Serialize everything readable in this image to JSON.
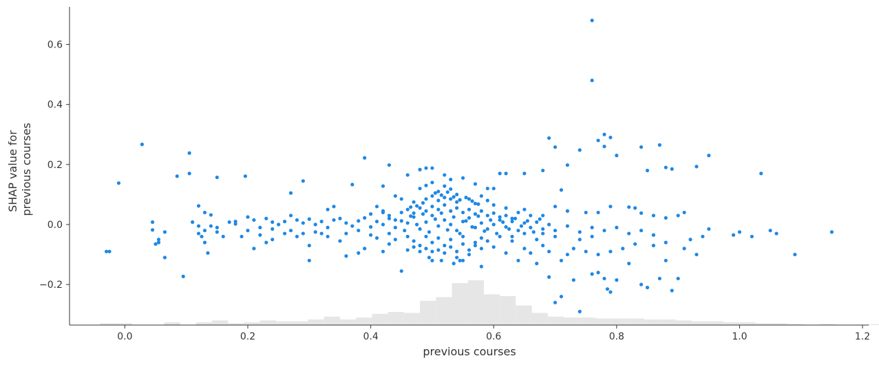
{
  "chart_data": {
    "type": "scatter",
    "title": "",
    "xlabel": "previous courses",
    "ylabel": [
      "SHAP value for",
      "previous courses"
    ],
    "xlim": [
      -0.09,
      1.21
    ],
    "ylim": [
      -0.335,
      0.725
    ],
    "x_ticks": [
      0.0,
      0.2,
      0.4,
      0.6,
      0.8,
      1.0,
      1.2
    ],
    "x_tick_labels": [
      "0.0",
      "0.2",
      "0.4",
      "0.6",
      "0.8",
      "1.0",
      "1.2"
    ],
    "y_ticks": [
      -0.2,
      0.0,
      0.2,
      0.4,
      0.6
    ],
    "y_tick_labels": [
      "−0.2",
      "0.0",
      "0.2",
      "0.4",
      "0.6"
    ],
    "grid": false,
    "point_color": "#1e88e5",
    "histogram_color": "#e6e6e6",
    "histogram": {
      "bin_start": -0.04,
      "bin_width": 0.026,
      "relative_heights": [
        0.02,
        0.02,
        0.0,
        0.0,
        0.03,
        0.0,
        0.03,
        0.05,
        0.02,
        0.03,
        0.05,
        0.04,
        0.04,
        0.06,
        0.09,
        0.06,
        0.08,
        0.12,
        0.14,
        0.13,
        0.26,
        0.3,
        0.45,
        0.48,
        0.33,
        0.31,
        0.21,
        0.13,
        0.09,
        0.08,
        0.08,
        0.07,
        0.07,
        0.07,
        0.06,
        0.06,
        0.05,
        0.04,
        0.04,
        0.03,
        0.03,
        0.02,
        0.02,
        0.01,
        0.0,
        0.01,
        0.0,
        0.0,
        0.01,
        0.01,
        0.0,
        0.0,
        0.0,
        0.0,
        0.0,
        0.0,
        0.0,
        0.0
      ]
    },
    "points": [
      [
        0.76,
        0.68
      ],
      [
        0.76,
        0.48
      ],
      [
        0.028,
        0.267
      ],
      [
        0.105,
        0.238
      ],
      [
        0.78,
        0.3
      ],
      [
        0.77,
        0.28
      ],
      [
        0.79,
        0.29
      ],
      [
        0.69,
        0.288
      ],
      [
        0.74,
        0.248
      ],
      [
        0.7,
        0.258
      ],
      [
        0.78,
        0.26
      ],
      [
        0.8,
        0.23
      ],
      [
        0.84,
        0.258
      ],
      [
        0.87,
        0.265
      ],
      [
        0.95,
        0.23
      ],
      [
        0.93,
        0.193
      ],
      [
        0.85,
        0.18
      ],
      [
        0.88,
        0.19
      ],
      [
        0.89,
        0.185
      ],
      [
        1.035,
        0.17
      ],
      [
        0.39,
        0.222
      ],
      [
        0.43,
        0.198
      ],
      [
        0.105,
        0.17
      ],
      [
        0.15,
        0.157
      ],
      [
        0.085,
        0.161
      ],
      [
        0.196,
        0.161
      ],
      [
        -0.01,
        0.138
      ],
      [
        0.29,
        0.145
      ],
      [
        0.27,
        0.105
      ],
      [
        0.37,
        0.133
      ],
      [
        0.42,
        0.128
      ],
      [
        0.72,
        0.198
      ],
      [
        0.71,
        0.115
      ],
      [
        0.68,
        0.18
      ],
      [
        0.65,
        0.17
      ],
      [
        0.62,
        0.17
      ],
      [
        0.61,
        0.17
      ],
      [
        0.59,
        0.12
      ],
      [
        0.6,
        0.12
      ],
      [
        0.57,
        0.135
      ],
      [
        0.49,
        0.188
      ],
      [
        0.5,
        0.188
      ],
      [
        0.48,
        0.183
      ],
      [
        0.46,
        0.165
      ],
      [
        0.52,
        0.165
      ],
      [
        0.55,
        0.155
      ],
      [
        0.53,
        0.15
      ],
      [
        -0.03,
        -0.09
      ],
      [
        -0.025,
        -0.09
      ],
      [
        0.065,
        -0.11
      ],
      [
        0.095,
        -0.173
      ],
      [
        0.3,
        -0.12
      ],
      [
        0.36,
        -0.105
      ],
      [
        0.38,
        -0.095
      ],
      [
        0.45,
        -0.155
      ],
      [
        0.5,
        -0.12
      ],
      [
        0.55,
        -0.12
      ],
      [
        0.58,
        -0.14
      ],
      [
        0.64,
        -0.12
      ],
      [
        0.67,
        -0.13
      ],
      [
        0.69,
        -0.175
      ],
      [
        0.7,
        -0.26
      ],
      [
        0.71,
        -0.24
      ],
      [
        0.73,
        -0.185
      ],
      [
        0.74,
        -0.29
      ],
      [
        0.76,
        -0.165
      ],
      [
        0.77,
        -0.16
      ],
      [
        0.78,
        -0.18
      ],
      [
        0.785,
        -0.215
      ],
      [
        0.79,
        -0.225
      ],
      [
        0.8,
        -0.185
      ],
      [
        0.84,
        -0.2
      ],
      [
        0.85,
        -0.21
      ],
      [
        0.87,
        -0.18
      ],
      [
        0.89,
        -0.22
      ],
      [
        0.9,
        -0.18
      ],
      [
        0.82,
        -0.13
      ],
      [
        0.88,
        -0.12
      ],
      [
        1.09,
        -0.1
      ],
      [
        1.15,
        -0.025
      ],
      [
        1.05,
        -0.02
      ],
      [
        1.06,
        -0.03
      ],
      [
        1.02,
        -0.04
      ],
      [
        0.99,
        -0.035
      ],
      [
        1.0,
        -0.025
      ],
      [
        0.95,
        -0.015
      ],
      [
        0.93,
        -0.1
      ],
      [
        0.91,
        -0.08
      ],
      [
        0.045,
        0.008
      ],
      [
        0.055,
        -0.05
      ],
      [
        0.055,
        -0.06
      ],
      [
        0.05,
        -0.065
      ],
      [
        0.045,
        -0.018
      ],
      [
        0.065,
        -0.025
      ],
      [
        0.12,
        0.062
      ],
      [
        0.13,
        0.04
      ],
      [
        0.14,
        0.032
      ],
      [
        0.135,
        -0.095
      ],
      [
        0.13,
        -0.06
      ],
      [
        0.11,
        0.008
      ],
      [
        0.12,
        -0.03
      ],
      [
        0.125,
        -0.04
      ],
      [
        0.14,
        -0.005
      ],
      [
        0.15,
        -0.025
      ],
      [
        0.16,
        -0.04
      ],
      [
        0.18,
        0.01
      ],
      [
        0.19,
        -0.04
      ],
      [
        0.21,
        -0.08
      ],
      [
        0.23,
        -0.06
      ],
      [
        0.24,
        -0.05
      ],
      [
        0.26,
        -0.03
      ],
      [
        0.28,
        -0.04
      ],
      [
        0.3,
        -0.07
      ],
      [
        0.32,
        -0.03
      ],
      [
        0.33,
        0.05
      ],
      [
        0.34,
        0.06
      ],
      [
        0.35,
        -0.055
      ],
      [
        0.41,
        0.06
      ],
      [
        0.42,
        0.04
      ],
      [
        0.44,
        0.095
      ],
      [
        0.45,
        0.085
      ],
      [
        0.47,
        0.075
      ],
      [
        0.48,
        0.12
      ],
      [
        0.49,
        0.13
      ],
      [
        0.5,
        0.14
      ],
      [
        0.51,
        0.11
      ],
      [
        0.52,
        0.128
      ],
      [
        0.53,
        0.118
      ],
      [
        0.54,
        0.1
      ],
      [
        0.555,
        0.09
      ],
      [
        0.56,
        0.085
      ],
      [
        0.57,
        0.07
      ],
      [
        0.58,
        0.095
      ],
      [
        0.59,
        0.08
      ],
      [
        0.6,
        0.065
      ],
      [
        0.62,
        0.055
      ],
      [
        0.64,
        0.04
      ],
      [
        0.65,
        0.05
      ],
      [
        0.66,
        0.03
      ],
      [
        0.68,
        0.03
      ],
      [
        0.7,
        0.06
      ],
      [
        0.72,
        0.045
      ],
      [
        0.75,
        0.04
      ],
      [
        0.77,
        0.04
      ],
      [
        0.79,
        0.06
      ],
      [
        0.82,
        0.058
      ],
      [
        0.83,
        0.055
      ],
      [
        0.84,
        0.038
      ],
      [
        0.86,
        0.03
      ],
      [
        0.88,
        0.022
      ],
      [
        0.9,
        0.03
      ],
      [
        0.91,
        0.04
      ],
      [
        0.39,
        -0.08
      ],
      [
        0.42,
        -0.09
      ],
      [
        0.43,
        -0.065
      ],
      [
        0.46,
        -0.085
      ],
      [
        0.48,
        -0.07
      ],
      [
        0.52,
        -0.07
      ],
      [
        0.54,
        -0.09
      ],
      [
        0.56,
        -0.085
      ],
      [
        0.6,
        -0.075
      ],
      [
        0.62,
        -0.095
      ],
      [
        0.65,
        -0.08
      ],
      [
        0.66,
        -0.095
      ],
      [
        0.68,
        -0.07
      ],
      [
        0.69,
        -0.09
      ],
      [
        0.71,
        -0.12
      ],
      [
        0.72,
        -0.1
      ],
      [
        0.73,
        -0.08
      ],
      [
        0.75,
        -0.09
      ],
      [
        0.77,
        -0.1
      ],
      [
        0.79,
        -0.09
      ],
      [
        0.81,
        -0.08
      ],
      [
        0.83,
        -0.065
      ],
      [
        0.86,
        -0.07
      ],
      [
        0.88,
        -0.06
      ],
      [
        0.92,
        -0.05
      ],
      [
        0.94,
        -0.04
      ],
      [
        0.76,
        -0.04
      ],
      [
        0.74,
        -0.05
      ],
      [
        0.7,
        -0.04
      ],
      [
        0.68,
        -0.03
      ],
      [
        0.67,
        -0.05
      ],
      [
        0.63,
        -0.04
      ],
      [
        0.12,
        -0.005
      ],
      [
        0.13,
        -0.02
      ],
      [
        0.15,
        -0.01
      ],
      [
        0.17,
        0.008
      ],
      [
        0.18,
        0.002
      ],
      [
        0.2,
        0.025
      ],
      [
        0.21,
        0.015
      ],
      [
        0.22,
        -0.01
      ],
      [
        0.23,
        0.02
      ],
      [
        0.24,
        0.008
      ],
      [
        0.25,
        0.0
      ],
      [
        0.26,
        0.01
      ],
      [
        0.27,
        0.03
      ],
      [
        0.28,
        0.015
      ],
      [
        0.29,
        0.005
      ],
      [
        0.3,
        0.018
      ],
      [
        0.31,
        0.0
      ],
      [
        0.32,
        0.01
      ],
      [
        0.33,
        -0.01
      ],
      [
        0.34,
        0.015
      ],
      [
        0.35,
        0.02
      ],
      [
        0.36,
        0.005
      ],
      [
        0.37,
        -0.005
      ],
      [
        0.38,
        0.012
      ],
      [
        0.39,
        0.022
      ],
      [
        0.4,
        -0.008
      ],
      [
        0.41,
        0.01
      ],
      [
        0.42,
        0.0
      ],
      [
        0.43,
        0.02
      ],
      [
        0.44,
        -0.01
      ],
      [
        0.45,
        0.012
      ],
      [
        0.46,
        0.005
      ],
      [
        0.47,
        0.025
      ],
      [
        0.48,
        -0.015
      ],
      [
        0.49,
        0.008
      ],
      [
        0.5,
        0.03
      ],
      [
        0.51,
        -0.005
      ],
      [
        0.52,
        0.015
      ],
      [
        0.53,
        0.0
      ],
      [
        0.54,
        -0.02
      ],
      [
        0.55,
        0.01
      ],
      [
        0.56,
        0.022
      ],
      [
        0.57,
        -0.01
      ],
      [
        0.58,
        0.005
      ],
      [
        0.59,
        -0.015
      ],
      [
        0.6,
        0.0
      ],
      [
        0.61,
        0.015
      ],
      [
        0.62,
        -0.008
      ],
      [
        0.63,
        0.01
      ],
      [
        0.64,
        -0.02
      ],
      [
        0.65,
        0.005
      ],
      [
        0.66,
        -0.01
      ],
      [
        0.67,
        0.008
      ],
      [
        0.68,
        -0.015
      ],
      [
        0.69,
        0.0
      ],
      [
        0.7,
        -0.02
      ],
      [
        0.72,
        -0.005
      ],
      [
        0.74,
        -0.025
      ],
      [
        0.76,
        -0.01
      ],
      [
        0.78,
        -0.02
      ],
      [
        0.8,
        -0.01
      ],
      [
        0.82,
        -0.03
      ],
      [
        0.84,
        -0.02
      ],
      [
        0.86,
        -0.035
      ],
      [
        0.2,
        -0.02
      ],
      [
        0.22,
        -0.035
      ],
      [
        0.24,
        -0.015
      ],
      [
        0.27,
        -0.02
      ],
      [
        0.29,
        -0.03
      ],
      [
        0.31,
        -0.025
      ],
      [
        0.33,
        -0.04
      ],
      [
        0.36,
        -0.03
      ],
      [
        0.38,
        -0.02
      ],
      [
        0.4,
        -0.035
      ],
      [
        0.41,
        -0.045
      ],
      [
        0.43,
        -0.03
      ],
      [
        0.44,
        -0.05
      ],
      [
        0.46,
        -0.04
      ],
      [
        0.47,
        -0.055
      ],
      [
        0.49,
        -0.04
      ],
      [
        0.5,
        -0.06
      ],
      [
        0.51,
        -0.045
      ],
      [
        0.53,
        -0.05
      ],
      [
        0.55,
        -0.04
      ],
      [
        0.57,
        -0.06
      ],
      [
        0.58,
        -0.045
      ],
      [
        0.59,
        -0.055
      ],
      [
        0.61,
        -0.04
      ],
      [
        0.63,
        -0.055
      ],
      [
        0.65,
        -0.03
      ],
      [
        0.4,
        0.035
      ],
      [
        0.42,
        0.045
      ],
      [
        0.43,
        0.03
      ],
      [
        0.45,
        0.04
      ],
      [
        0.46,
        0.05
      ],
      [
        0.47,
        0.038
      ],
      [
        0.48,
        0.055
      ],
      [
        0.49,
        0.045
      ],
      [
        0.5,
        0.06
      ],
      [
        0.51,
        0.05
      ],
      [
        0.52,
        0.065
      ],
      [
        0.53,
        0.045
      ],
      [
        0.54,
        0.055
      ],
      [
        0.55,
        0.04
      ],
      [
        0.56,
        0.05
      ],
      [
        0.57,
        0.035
      ],
      [
        0.58,
        0.045
      ],
      [
        0.59,
        0.03
      ],
      [
        0.6,
        0.038
      ],
      [
        0.61,
        0.025
      ],
      [
        0.62,
        0.03
      ],
      [
        0.63,
        0.02
      ],
      [
        0.44,
        0.015
      ],
      [
        0.455,
        -0.02
      ],
      [
        0.465,
        0.028
      ],
      [
        0.475,
        0.0
      ],
      [
        0.485,
        0.035
      ],
      [
        0.495,
        -0.025
      ],
      [
        0.505,
        0.018
      ],
      [
        0.515,
        0.038
      ],
      [
        0.525,
        -0.018
      ],
      [
        0.535,
        0.025
      ],
      [
        0.545,
        -0.03
      ],
      [
        0.555,
        0.012
      ],
      [
        0.565,
        -0.008
      ],
      [
        0.575,
        0.028
      ],
      [
        0.585,
        -0.022
      ],
      [
        0.595,
        0.015
      ],
      [
        0.605,
        -0.03
      ],
      [
        0.615,
        0.008
      ],
      [
        0.625,
        -0.015
      ],
      [
        0.635,
        0.02
      ],
      [
        0.645,
        -0.005
      ],
      [
        0.655,
        0.012
      ],
      [
        0.665,
        -0.025
      ],
      [
        0.675,
        0.018
      ],
      [
        0.52,
        0.09
      ],
      [
        0.53,
        0.085
      ],
      [
        0.54,
        0.075
      ],
      [
        0.51,
        0.08
      ],
      [
        0.5,
        0.095
      ],
      [
        0.49,
        0.085
      ],
      [
        0.505,
        0.105
      ],
      [
        0.515,
        0.098
      ],
      [
        0.525,
        0.108
      ],
      [
        0.535,
        0.092
      ],
      [
        0.545,
        0.082
      ],
      [
        0.565,
        0.078
      ],
      [
        0.575,
        0.068
      ],
      [
        0.485,
        0.072
      ],
      [
        0.475,
        0.062
      ],
      [
        0.465,
        0.058
      ],
      [
        0.5,
        -0.09
      ],
      [
        0.51,
        -0.085
      ],
      [
        0.52,
        -0.095
      ],
      [
        0.53,
        -0.075
      ],
      [
        0.49,
        -0.08
      ],
      [
        0.48,
        -0.09
      ],
      [
        0.47,
        -0.075
      ],
      [
        0.55,
        -0.065
      ],
      [
        0.56,
        -0.1
      ],
      [
        0.57,
        -0.07
      ],
      [
        0.58,
        -0.08
      ],
      [
        0.54,
        -0.11
      ],
      [
        0.535,
        -0.13
      ],
      [
        0.545,
        -0.12
      ],
      [
        0.515,
        -0.12
      ],
      [
        0.495,
        -0.11
      ]
    ]
  }
}
